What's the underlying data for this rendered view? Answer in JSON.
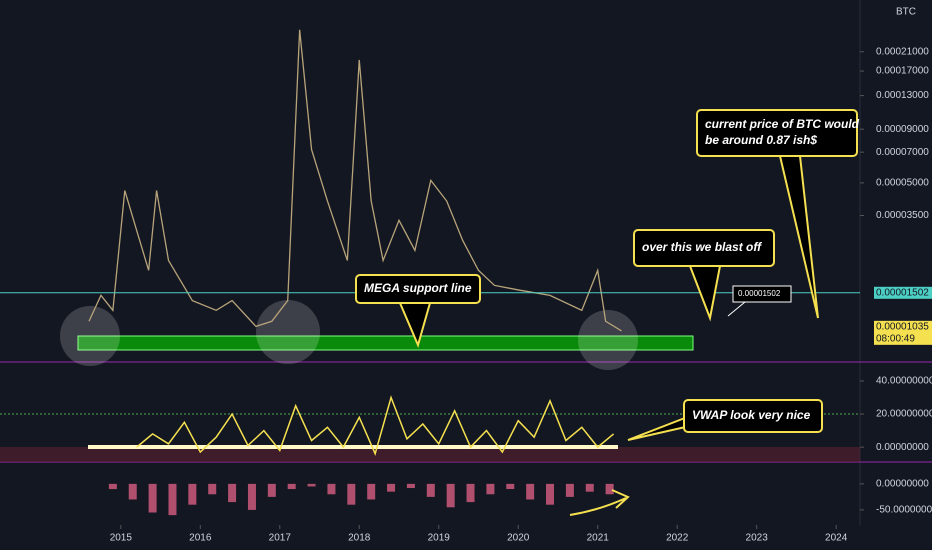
{
  "chart_data": [
    {
      "type": "line",
      "log_scale": true,
      "axis_unit": "BTC",
      "x": [
        2014.6,
        2014.75,
        2014.9,
        2015.05,
        2015.2,
        2015.35,
        2015.45,
        2015.6,
        2015.9,
        2016.2,
        2016.4,
        2016.7,
        2016.9,
        2017.1,
        2017.25,
        2017.4,
        2017.6,
        2017.85,
        2018.0,
        2018.15,
        2018.3,
        2018.5,
        2018.7,
        2018.9,
        2019.1,
        2019.3,
        2019.5,
        2019.7,
        2020.0,
        2020.4,
        2020.8,
        2021.0,
        2021.1,
        2021.3
      ],
      "series": [
        {
          "color": "#b8a47a",
          "values": [
            1.1e-05,
            1.46e-05,
            1.24e-05,
            4.6e-05,
            2.97e-05,
            1.92e-05,
            4.6e-05,
            2.14e-05,
            1.38e-05,
            1.24e-05,
            1.38e-05,
            1.04e-05,
            1.1e-05,
            1.38e-05,
            0.000267,
            7.2e-05,
            4.1e-05,
            2.14e-05,
            0.000192,
            4.1e-05,
            2.14e-05,
            3.32e-05,
            2.39e-05,
            5.14e-05,
            4.1e-05,
            2.67e-05,
            1.92e-05,
            1.63e-05,
            1.55e-05,
            1.46e-05,
            1.24e-05,
            1.92e-05,
            1.1e-05,
            9.9e-06
          ]
        }
      ],
      "xlim": [
        2013.48,
        2024.3
      ],
      "xticks": [
        2015,
        2016,
        2017,
        2018,
        2019,
        2020,
        2021,
        2022,
        2023,
        2024
      ],
      "ylim": [
        7.2e-06,
        0.00037
      ],
      "yticks": [
        {
          "value": 0.00021,
          "label": "0.00021000"
        },
        {
          "value": 0.00017,
          "label": "0.00017000"
        },
        {
          "value": 0.00013,
          "label": "0.00013000"
        },
        {
          "value": 9e-05,
          "label": "0.00009000"
        },
        {
          "value": 7e-05,
          "label": "0.00007000"
        },
        {
          "value": 5e-05,
          "label": "0.00005000"
        },
        {
          "value": 3.5e-05,
          "label": "0.00003500"
        }
      ],
      "price_line": 1.502e-05,
      "price_line_color": "#4dd0c4",
      "last_price": 1.035e-05,
      "countdown": "08:00:49",
      "annotations": [
        "MEGA support line",
        "over this we blast off",
        "current price of BTC would be around 0.87 ish$",
        "0.00001502"
      ]
    },
    {
      "type": "line",
      "x": [
        2015.2,
        2015.4,
        2015.6,
        2015.8,
        2016.0,
        2016.2,
        2016.4,
        2016.6,
        2016.8,
        2017.0,
        2017.2,
        2017.4,
        2017.6,
        2017.8,
        2018.0,
        2018.2,
        2018.4,
        2018.6,
        2018.8,
        2019.0,
        2019.2,
        2019.4,
        2019.6,
        2019.8,
        2020.0,
        2020.2,
        2020.4,
        2020.6,
        2020.8,
        2021.0,
        2021.2
      ],
      "series": [
        {
          "color": "#f5e050",
          "values": [
            0,
            8,
            2,
            15,
            -3,
            6,
            20,
            1,
            10,
            -2,
            25,
            4,
            12,
            0,
            18,
            -4,
            30,
            5,
            14,
            2,
            22,
            0,
            10,
            -3,
            16,
            6,
            28,
            4,
            12,
            0,
            8
          ]
        }
      ],
      "ylim": [
        -9,
        51.5
      ],
      "yticks": [
        {
          "value": 40,
          "label": "40.00000000"
        },
        {
          "value": 20,
          "label": "20.00000000"
        },
        {
          "value": 0,
          "label": "0.00000000"
        }
      ],
      "annotations": [
        "VWAP look very nice"
      ]
    },
    {
      "type": "bar",
      "color": "#b0506e",
      "x": [
        2014.9,
        2015.15,
        2015.4,
        2015.65,
        2015.9,
        2016.15,
        2016.4,
        2016.65,
        2016.9,
        2017.15,
        2017.4,
        2017.65,
        2017.9,
        2018.15,
        2018.4,
        2018.65,
        2018.9,
        2019.15,
        2019.4,
        2019.65,
        2019.9,
        2020.15,
        2020.4,
        2020.65,
        2020.9,
        2021.15
      ],
      "values": [
        -10,
        -30,
        -55,
        -60,
        -40,
        -20,
        -35,
        -50,
        -25,
        -10,
        -5,
        -20,
        -40,
        -30,
        -15,
        -8,
        -25,
        -45,
        -35,
        -20,
        -10,
        -30,
        -40,
        -25,
        -15,
        -20
      ],
      "ylim": [
        -79,
        42
      ],
      "yticks": [
        {
          "value": 0,
          "label": "0.00000000"
        },
        {
          "value": -50,
          "label": "-50.00000000"
        }
      ]
    }
  ]
}
